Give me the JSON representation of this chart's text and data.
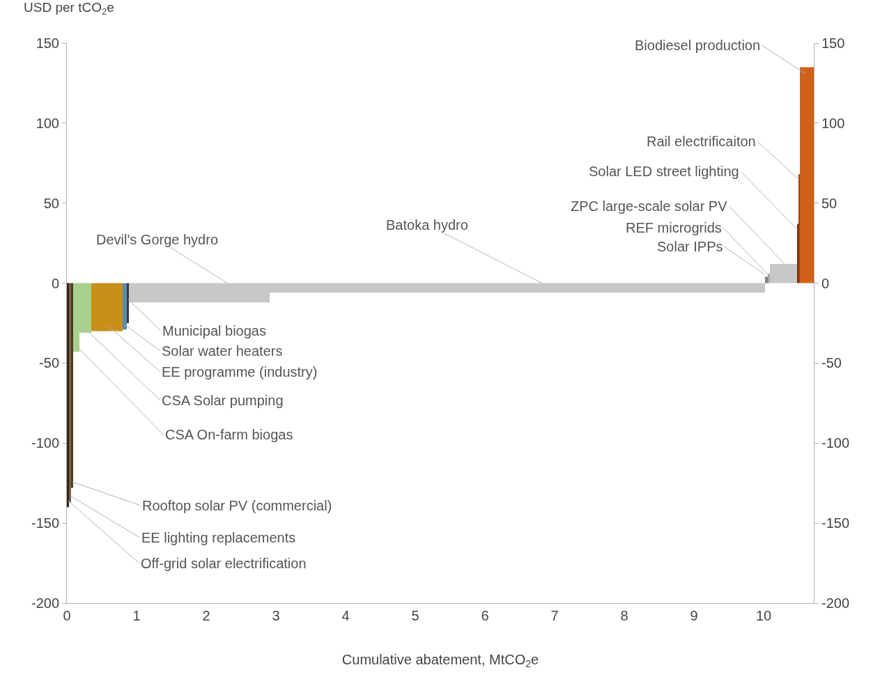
{
  "chart_data": {
    "type": "area",
    "xlabel": "Cumulative abatement, MtCO$_{2}$e",
    "ylabel": "USD per tCO$_{2}$e",
    "xlim": [
      0,
      10.72
    ],
    "xticks": [
      0,
      1,
      2,
      3,
      4,
      5,
      6,
      7,
      8,
      9,
      10
    ],
    "ylim": [
      -200,
      150
    ],
    "yticks": [
      -200,
      -150,
      -100,
      -50,
      0,
      50,
      100,
      150
    ],
    "y2lim": [
      -200,
      150
    ],
    "y2ticks": [
      -200,
      -150,
      -100,
      -50,
      0,
      50,
      100,
      150
    ],
    "series": [
      {
        "name": "Off-grid solar electrification",
        "color": "#2e2518",
        "x": [
          0,
          0.03
        ],
        "values": [
          -140,
          -140
        ]
      },
      {
        "name": "EE lighting replacements",
        "color": "#7a6040",
        "x": [
          0.03,
          0.06
        ],
        "values": [
          -137,
          -137
        ]
      },
      {
        "name": "Rooftop solar PV (commercial)",
        "color": "#4a3b28",
        "x": [
          0.06,
          0.09
        ],
        "values": [
          -128,
          -128
        ]
      },
      {
        "name": "CSA On-farm biogas",
        "color": "#a9d18e",
        "x": [
          0.09,
          0.18
        ],
        "values": [
          -43,
          -43
        ]
      },
      {
        "name": "CSA Solar pumping",
        "color": "#a9d18e",
        "x": [
          0.18,
          0.35
        ],
        "values": [
          -31,
          -31
        ]
      },
      {
        "name": "EE programme (industry)",
        "color": "#c8901a",
        "x": [
          0.35,
          0.8
        ],
        "values": [
          -30,
          -30
        ]
      },
      {
        "name": "Solar water heaters",
        "color": "#5a8bb0",
        "x": [
          0.8,
          0.86
        ],
        "values": [
          -29,
          -29
        ]
      },
      {
        "name": "Municipal biogas",
        "color": "#3a3a3a",
        "x": [
          0.86,
          0.89
        ],
        "values": [
          -25,
          -25
        ]
      },
      {
        "name": "Devil's Gorge hydro",
        "color": "#c8c8c8",
        "x": [
          0.89,
          2.91
        ],
        "values": [
          -12,
          -12
        ]
      },
      {
        "name": "Batoka hydro",
        "color": "#c8c8c8",
        "x": [
          2.91,
          10.02
        ],
        "values": [
          -6,
          -6
        ]
      },
      {
        "name": "Solar IPPs",
        "color": "#7f7f7f",
        "x": [
          10.02,
          10.06
        ],
        "values": [
          4,
          4
        ]
      },
      {
        "name": "REF microgrids",
        "color": "#a8a8a8",
        "x": [
          10.06,
          10.09
        ],
        "values": [
          6,
          6
        ]
      },
      {
        "name": "ZPC large-scale solar PV",
        "color": "#c8c8c8",
        "x": [
          10.09,
          10.48
        ],
        "values": [
          12,
          12
        ]
      },
      {
        "name": "Solar LED street lighting",
        "color": "#6b3010",
        "x": [
          10.48,
          10.5
        ],
        "values": [
          37,
          37
        ]
      },
      {
        "name": "Rail electrificaiton",
        "color": "#a0410f",
        "x": [
          10.5,
          10.52
        ],
        "values": [
          68,
          68
        ]
      },
      {
        "name": "Biodiesel production",
        "color": "#d0611a",
        "x": [
          10.52,
          10.72
        ],
        "values": [
          135,
          135
        ]
      }
    ]
  }
}
